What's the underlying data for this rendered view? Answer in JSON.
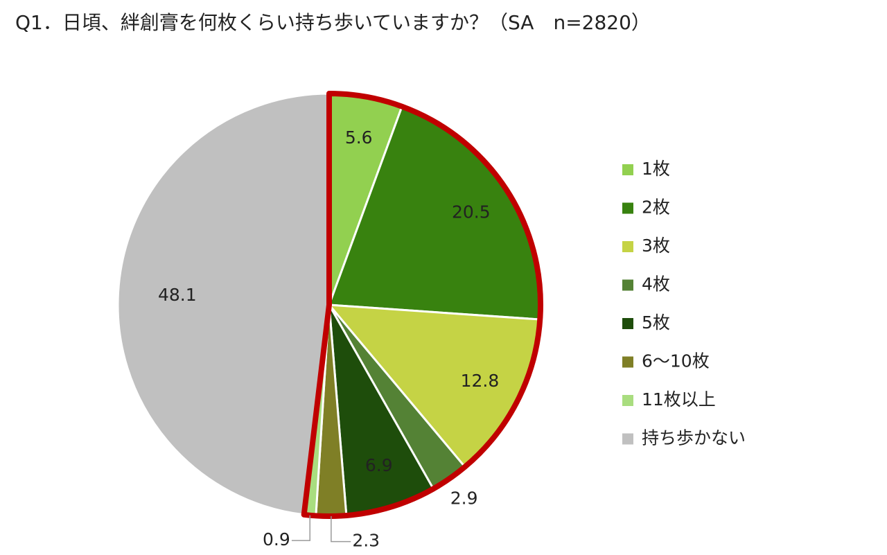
{
  "chart_data": {
    "type": "pie",
    "title": "Q1．日頃、絆創膏を何枚くらい持ち歩いていますか？（SA　n=2820）",
    "categories": [
      "1枚",
      "2枚",
      "3枚",
      "4枚",
      "5枚",
      "6～10枚",
      "11枚以上",
      "持ち歩かない"
    ],
    "values": [
      5.6,
      20.5,
      12.8,
      2.9,
      6.9,
      2.3,
      0.9,
      48.1
    ],
    "colors": [
      "#92d050",
      "#38820f",
      "#c5d345",
      "#548235",
      "#1e4d0b",
      "#7f7f26",
      "#a9dd7f",
      "#c0c0c0"
    ],
    "legend": "right"
  }
}
